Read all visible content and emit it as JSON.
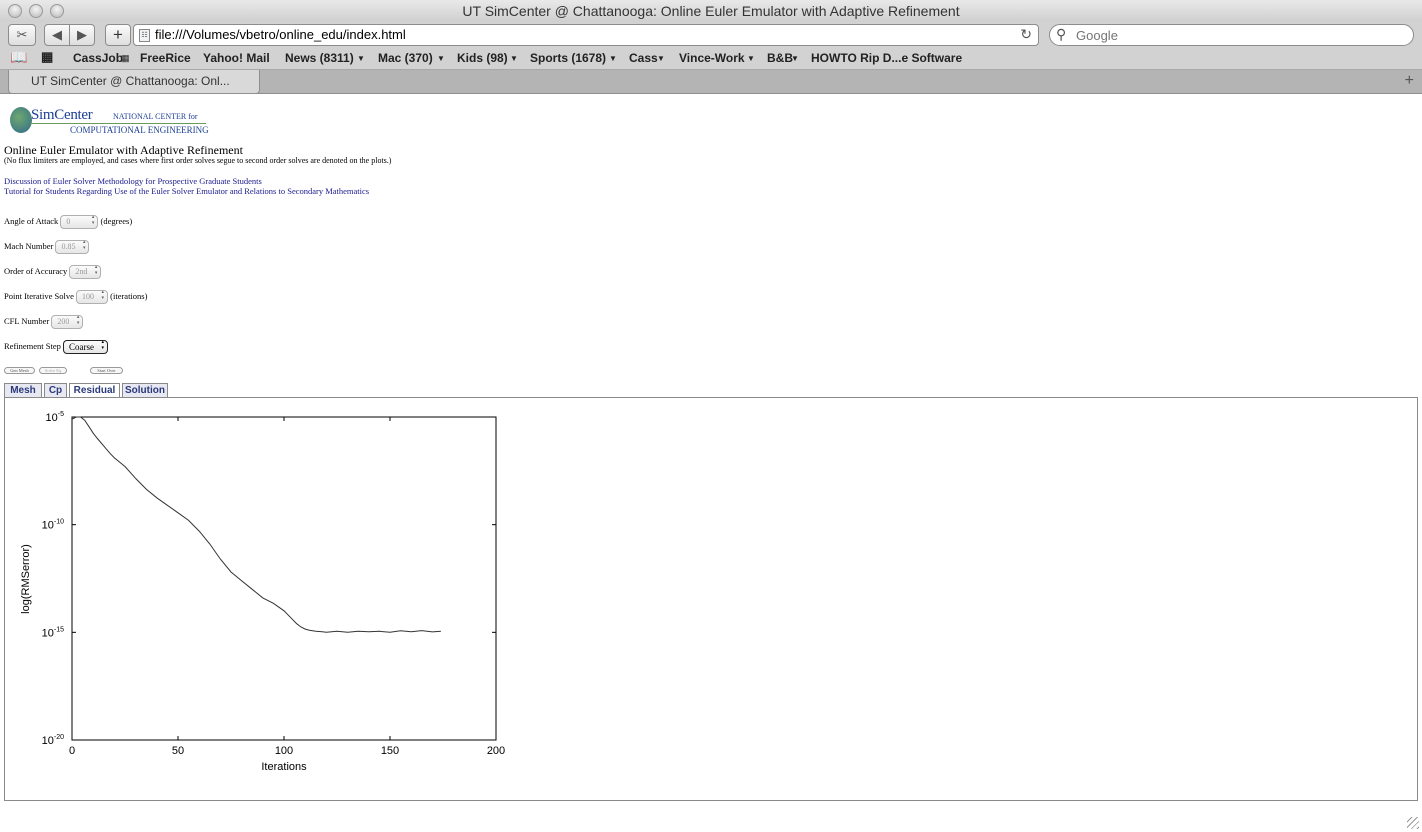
{
  "window": {
    "title": "UT SimCenter @ Chattanooga: Online Euler Emulator with Adaptive Refinement"
  },
  "toolbar": {
    "url": "file:///Volumes/vbetro/online_edu/index.html",
    "search_placeholder": "Google",
    "add_label": "+",
    "reload_icon": "reload-icon"
  },
  "bookmarks": [
    "CassJob",
    "FreeRice",
    "Yahoo! Mail",
    "News (8311)",
    "Mac (370)",
    "Kids (98)",
    "Sports (1678)",
    "Cass",
    "Vince-Work",
    "B&B",
    "HOWTO Rip D...e Software"
  ],
  "browser_tab": {
    "label": "UT SimCenter @ Chattanooga: Onl..."
  },
  "page": {
    "logo": {
      "sim": "SimCenter",
      "national": "NATIONAL CENTER for",
      "comp": "COMPUTATIONAL ENGINEERING"
    },
    "heading": "Online Euler Emulator with Adaptive Refinement",
    "note": "(No flux limiters are employed, and cases where first order solves segue to second order solves are denoted on the plots.)",
    "links": [
      "Discussion of Euler Solver Methodology for Prospective Graduate Students",
      "Tutorial for Students Regarding Use of the Euler Solver Emulator and Relations to Secondary Mathematics"
    ],
    "controls": {
      "angle": {
        "label": "Angle of Attack",
        "value": "0",
        "unit": "(degrees)"
      },
      "mach": {
        "label": "Mach Number",
        "value": "0.85"
      },
      "order": {
        "label": "Order of Accuracy",
        "value": "2nd"
      },
      "point": {
        "label": "Point Iterative Solve",
        "value": "100",
        "unit": "(iterations)"
      },
      "cfl": {
        "label": "CFL Number",
        "value": "200"
      },
      "refinement": {
        "label": "Refinement Step",
        "value": "Coarse"
      }
    },
    "buttons": {
      "gen_mesh": "Gen Mesh",
      "solve_eq": "Solve Eq",
      "start_over": "Start Over"
    },
    "tabs": [
      "Mesh",
      "Cp",
      "Residual",
      "Solution"
    ],
    "active_tab": "Residual"
  },
  "chart_data": {
    "type": "line",
    "xlabel": "Iterations",
    "ylabel": "log(RMSerror)",
    "xlim": [
      0,
      200
    ],
    "ylim_exponent": [
      -20,
      -5
    ],
    "y_log_scale": true,
    "x_ticks": [
      "0",
      "50",
      "100",
      "150",
      "200"
    ],
    "y_tick_exponents": [
      "-5",
      "-10",
      "-15",
      "-20"
    ],
    "y_tick_base": "10",
    "grid": false,
    "series": [
      {
        "x": [
          0,
          2,
          4,
          6,
          8,
          10,
          12,
          15,
          18,
          20,
          25,
          30,
          35,
          40,
          45,
          50,
          55,
          60,
          65,
          70,
          75,
          80,
          85,
          90,
          95,
          100,
          103,
          106,
          108,
          110,
          112,
          115,
          118,
          120,
          125,
          130,
          135,
          140,
          145,
          150,
          155,
          160,
          165,
          170,
          174
        ],
        "log10_y": [
          -5.1,
          -5.0,
          -5.0,
          -5.15,
          -5.45,
          -5.75,
          -6.0,
          -6.35,
          -6.7,
          -6.9,
          -7.3,
          -7.85,
          -8.35,
          -8.75,
          -9.1,
          -9.45,
          -9.8,
          -10.3,
          -10.9,
          -11.6,
          -12.2,
          -12.6,
          -13.0,
          -13.4,
          -13.65,
          -14.0,
          -14.3,
          -14.6,
          -14.75,
          -14.85,
          -14.9,
          -14.95,
          -14.97,
          -15.0,
          -14.95,
          -15.0,
          -14.95,
          -14.97,
          -14.95,
          -15.0,
          -14.93,
          -14.97,
          -14.92,
          -14.98,
          -14.95
        ]
      }
    ]
  }
}
